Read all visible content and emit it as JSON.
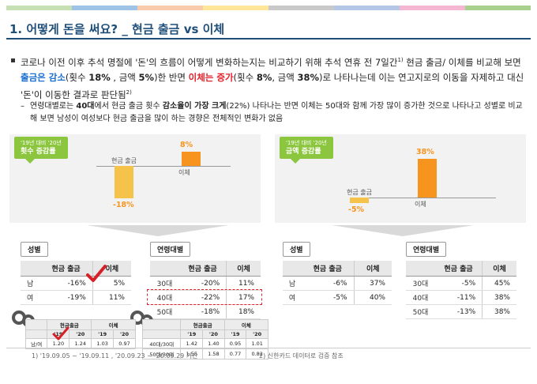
{
  "colors": {
    "accent_title": "#1f4e79",
    "highlight_blue": "#1a6fd0",
    "highlight_red": "#e4202a",
    "tag_green": "#8cc63f",
    "bar_yellow": "#f5c24a",
    "bar_orange": "#f7941d"
  },
  "topbar_colors": [
    "#c6e0b4",
    "#9dc3e6",
    "#f8cbad",
    "#ffe699",
    "#c9c9c9",
    "#b4c7e7",
    "#f4b6d2",
    "#a9d18e"
  ],
  "title": "1. 어떻게 돈을 써요? _ 현금 출금 vs 이체",
  "bullet": {
    "p1": "코로나 이전 이후 추석 명절에 '돈'의 흐름이 어떻게 변화하는지는 비교하기 위해 추석 연휴 전 7일간",
    "p1_sup": "1)",
    "p2": " 현금 출금/ 이체를 비교해 보면 ",
    "hl1": "출금은 감소",
    "p3": "(횟수 ",
    "v1": "18%",
    "p4": " , 금액 ",
    "v2": "5%",
    "p5": ")한 반면 ",
    "hl2": "이체는 증가",
    "p6": "(횟수 ",
    "v3": "8%",
    "p7": ", 금액 ",
    "v4": "38%",
    "p8": ")로 나타나는데 이는 연고지로의 이동을 자제하고 대신 '돈'이 이동한 결과로 판단됨",
    "p8_sup": "2)"
  },
  "sub": {
    "dash": "–",
    "t1": "연령대별로는 ",
    "b1": "40대",
    "t2": "에서 현금 출금 횟수 ",
    "b2": "감소율이 가장 크게",
    "t3": "(22%) 나타나는 반면 이체는 50대와 함께 가장 많이 증가한 것으로 나타나고 성별로 비교해 보면 남성이 여성보다 현금 출금을 많이 하는 경향은 전체적인 변화가 없음"
  },
  "left_panel": {
    "tag_small": "'19년 대비 '20년",
    "tag_main": "횟수 증감률",
    "chart_data": {
      "type": "bar",
      "categories": [
        "현금 출금",
        "이체"
      ],
      "values": [
        -18,
        8
      ],
      "value_labels": [
        "-18%",
        "8%"
      ],
      "ylim": [
        -20,
        40
      ]
    },
    "gender": {
      "label": "성별",
      "headers": [
        "",
        "현금 출금",
        "이체"
      ],
      "rows": [
        [
          "남",
          "-16%",
          "5%"
        ],
        [
          "여",
          "-19%",
          "11%"
        ]
      ]
    },
    "age": {
      "label": "연령대별",
      "headers": [
        "",
        "현금 출금",
        "이체"
      ],
      "rows": [
        [
          "30대",
          "-20%",
          "11%"
        ],
        [
          "40대",
          "-22%",
          "17%"
        ],
        [
          "50대",
          "-18%",
          "18%"
        ]
      ]
    },
    "mini_gender": {
      "h1": [
        "",
        "현금출금",
        "",
        "이체",
        ""
      ],
      "h2": [
        "",
        "'19",
        "'20",
        "'19",
        "'20"
      ],
      "rows": [
        [
          "남/여",
          "1.20",
          "1.24",
          "1.03",
          "0.97"
        ]
      ]
    },
    "mini_age": {
      "h1": [
        "",
        "현금출금",
        "",
        "이체",
        ""
      ],
      "h2": [
        "",
        "'19",
        "'20",
        "'19",
        "'20"
      ],
      "rows": [
        [
          "40대/30대",
          "1.42",
          "1.40",
          "0.95",
          "1.01"
        ],
        [
          "50대/30대",
          "1.55",
          "1.58",
          "0.77",
          "0.82"
        ]
      ]
    }
  },
  "right_panel": {
    "tag_small": "'19년 대비 '20년",
    "tag_main": "금액 증감률",
    "chart_data": {
      "type": "bar",
      "categories": [
        "현금 출금",
        "이체"
      ],
      "values": [
        -5,
        38
      ],
      "value_labels": [
        "-5%",
        "38%"
      ],
      "ylim": [
        -20,
        40
      ]
    },
    "gender": {
      "label": "성별",
      "headers": [
        "",
        "현금 출금",
        "이체"
      ],
      "rows": [
        [
          "남",
          "-6%",
          "37%"
        ],
        [
          "여",
          "-5%",
          "40%"
        ]
      ]
    },
    "age": {
      "label": "연령대별",
      "headers": [
        "",
        "현금 출금",
        "이체"
      ],
      "rows": [
        [
          "30대",
          "-5%",
          "45%"
        ],
        [
          "40대",
          "-11%",
          "38%"
        ],
        [
          "50대",
          "-13%",
          "38%"
        ]
      ]
    }
  },
  "footnotes": {
    "f1": "1) '19.09.05 ~ '19.09.11 , '20.09.23 ~ '20.09.29 기간",
    "f2": "2) 신한카드 데이터로 검증 참조"
  }
}
